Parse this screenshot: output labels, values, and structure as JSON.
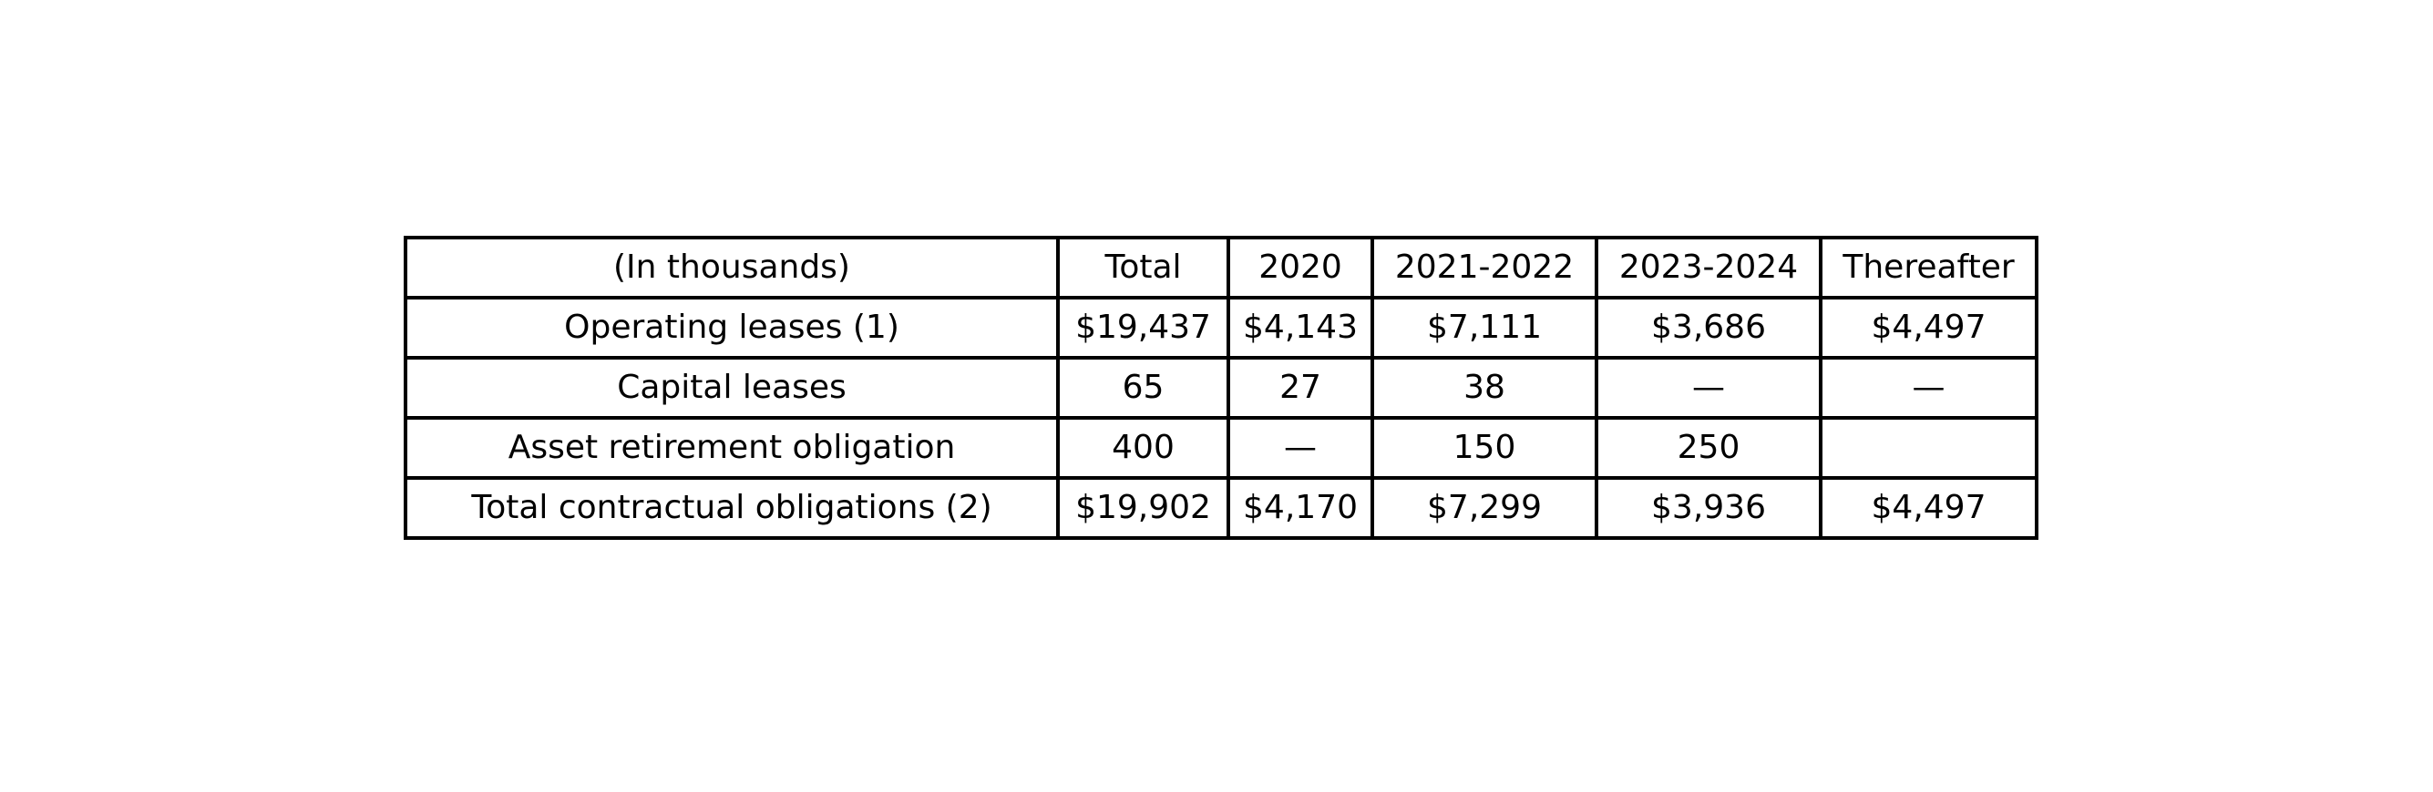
{
  "table": {
    "header": [
      "(In thousands)",
      "Total",
      "2020",
      "2021-2022",
      "2023-2024",
      "Thereafter"
    ],
    "rows": [
      [
        "Operating leases (1)",
        "$19,437",
        "$4,143",
        "$7,111",
        "$3,686",
        "$4,497"
      ],
      [
        "Capital leases",
        "65",
        "27",
        "38",
        "—",
        "—"
      ],
      [
        "Asset retirement obligation",
        "400",
        "—",
        "150",
        "250",
        ""
      ],
      [
        "Total contractual obligations (2)",
        "$19,902",
        "$4,170",
        "$7,299",
        "$3,936",
        "$4,497"
      ]
    ]
  }
}
